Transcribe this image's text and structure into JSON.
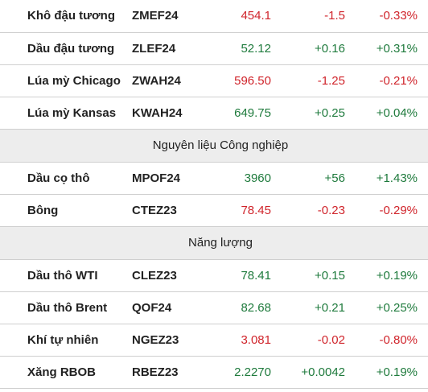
{
  "colors": {
    "up": "#1e7a3c",
    "down": "#d0242b",
    "section_bg": "#ededed"
  },
  "rows_top": [
    {
      "name": "Khô đậu tương",
      "code": "ZMEF24",
      "price": "454.1",
      "change": "-1.5",
      "pct": "-0.33%",
      "dir": "down"
    },
    {
      "name": "Dầu đậu tương",
      "code": "ZLEF24",
      "price": "52.12",
      "change": "+0.16",
      "pct": "+0.31%",
      "dir": "up"
    },
    {
      "name": "Lúa mỳ Chicago",
      "code": "ZWAH24",
      "price": "596.50",
      "change": "-1.25",
      "pct": "-0.21%",
      "dir": "down"
    },
    {
      "name": "Lúa mỳ Kansas",
      "code": "KWAH24",
      "price": "649.75",
      "change": "+0.25",
      "pct": "+0.04%",
      "dir": "up"
    }
  ],
  "section_industrial": {
    "title": "Nguyên liệu Công nghiệp",
    "rows": [
      {
        "name": "Dầu cọ thô",
        "code": "MPOF24",
        "price": "3960",
        "change": "+56",
        "pct": "+1.43%",
        "dir": "up"
      },
      {
        "name": "Bông",
        "code": "CTEZ23",
        "price": "78.45",
        "change": "-0.23",
        "pct": "-0.29%",
        "dir": "down"
      }
    ]
  },
  "section_energy": {
    "title": "Năng lượng",
    "rows": [
      {
        "name": "Dầu thô WTI",
        "code": "CLEZ23",
        "price": "78.41",
        "change": "+0.15",
        "pct": "+0.19%",
        "dir": "up"
      },
      {
        "name": "Dầu thô Brent",
        "code": "QOF24",
        "price": "82.68",
        "change": "+0.21",
        "pct": "+0.25%",
        "dir": "up"
      },
      {
        "name": "Khí tự nhiên",
        "code": "NGEZ23",
        "price": "3.081",
        "change": "-0.02",
        "pct": "-0.80%",
        "dir": "down"
      },
      {
        "name": "Xăng RBOB",
        "code": "RBEZ23",
        "price": "2.2270",
        "change": "+0.0042",
        "pct": "+0.19%",
        "dir": "up"
      }
    ]
  }
}
